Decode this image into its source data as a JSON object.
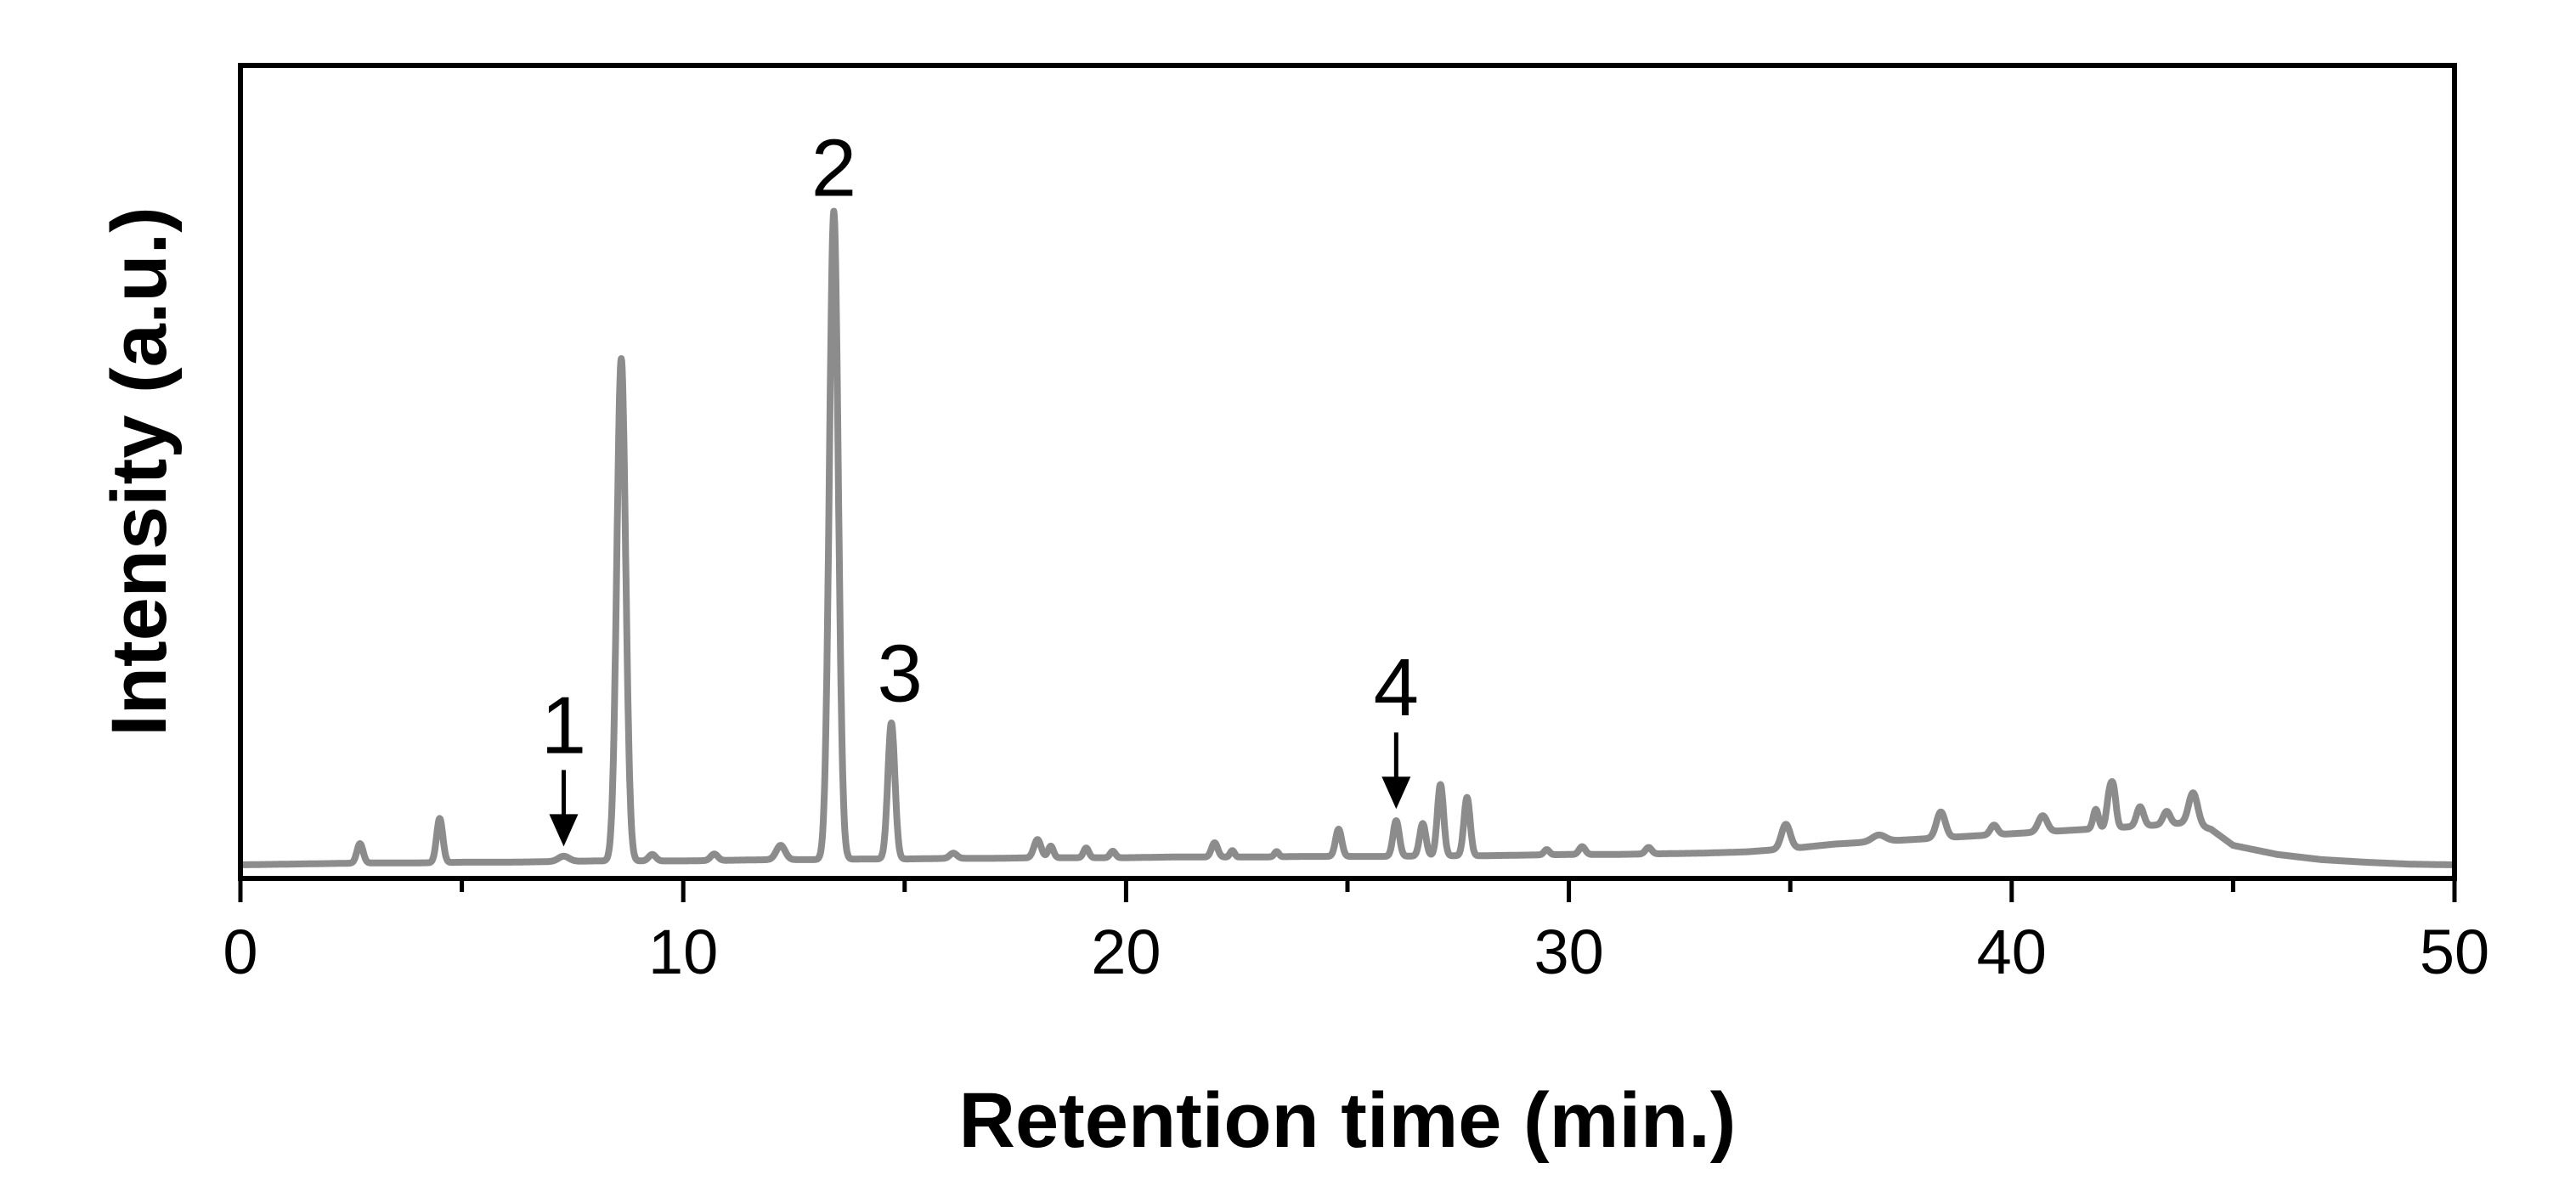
{
  "chart_data": {
    "type": "line",
    "title": "",
    "xlabel": "Retention time (min.)",
    "ylabel": "Intensity (a.u.)",
    "xlim": [
      0,
      50
    ],
    "ylim": [
      0,
      1.0
    ],
    "x_ticks": [
      0,
      10,
      20,
      30,
      40,
      50
    ],
    "x_minor_ticks": [
      5,
      15,
      25,
      35,
      45
    ],
    "y_ticks_shown": false,
    "grid": false,
    "legend": "none",
    "line_color": "#8c8c8c",
    "series": [
      {
        "baseline": [
          [
            0,
            0.0
          ],
          [
            1,
            0.001
          ],
          [
            2,
            0.002
          ],
          [
            3,
            0.003
          ],
          [
            4,
            0.003
          ],
          [
            5,
            0.004
          ],
          [
            6,
            0.004
          ],
          [
            7,
            0.005
          ],
          [
            8,
            0.006
          ],
          [
            9,
            0.006
          ],
          [
            10,
            0.006
          ],
          [
            11,
            0.007
          ],
          [
            12,
            0.008
          ],
          [
            13,
            0.008
          ],
          [
            14,
            0.009
          ],
          [
            15,
            0.009
          ],
          [
            16,
            0.01
          ],
          [
            17,
            0.01
          ],
          [
            18,
            0.011
          ],
          [
            19,
            0.011
          ],
          [
            20,
            0.011
          ],
          [
            21,
            0.012
          ],
          [
            22,
            0.012
          ],
          [
            23,
            0.012
          ],
          [
            24,
            0.013
          ],
          [
            25,
            0.013
          ],
          [
            26,
            0.013
          ],
          [
            27,
            0.014
          ],
          [
            28,
            0.014
          ],
          [
            29,
            0.015
          ],
          [
            30,
            0.016
          ],
          [
            31,
            0.016
          ],
          [
            32,
            0.017
          ],
          [
            33,
            0.018
          ],
          [
            34,
            0.02
          ],
          [
            35,
            0.025
          ],
          [
            36,
            0.032
          ],
          [
            37,
            0.036
          ],
          [
            38,
            0.04
          ],
          [
            39,
            0.044
          ],
          [
            40,
            0.048
          ],
          [
            41,
            0.052
          ],
          [
            42,
            0.056
          ],
          [
            43,
            0.06
          ],
          [
            44,
            0.065
          ],
          [
            44.5,
            0.055
          ],
          [
            45,
            0.03
          ],
          [
            46,
            0.016
          ],
          [
            47,
            0.008
          ],
          [
            48,
            0.004
          ],
          [
            49,
            0.001
          ],
          [
            50,
            0.0
          ]
        ],
        "peaks": [
          {
            "x": 2.7,
            "y": 0.03,
            "w": 0.07
          },
          {
            "x": 4.5,
            "y": 0.068,
            "w": 0.07
          },
          {
            "x": 7.3,
            "y": 0.008,
            "w": 0.12
          },
          {
            "x": 8.6,
            "y": 0.775,
            "w": 0.1
          },
          {
            "x": 9.3,
            "y": 0.01,
            "w": 0.08
          },
          {
            "x": 10.7,
            "y": 0.01,
            "w": 0.08
          },
          {
            "x": 12.2,
            "y": 0.022,
            "w": 0.1
          },
          {
            "x": 13.4,
            "y": 1.0,
            "w": 0.1
          },
          {
            "x": 14.7,
            "y": 0.21,
            "w": 0.08
          },
          {
            "x": 16.1,
            "y": 0.008,
            "w": 0.08
          },
          {
            "x": 18.0,
            "y": 0.028,
            "w": 0.08
          },
          {
            "x": 18.3,
            "y": 0.018,
            "w": 0.06
          },
          {
            "x": 19.1,
            "y": 0.015,
            "w": 0.06
          },
          {
            "x": 19.7,
            "y": 0.01,
            "w": 0.06
          },
          {
            "x": 22.0,
            "y": 0.022,
            "w": 0.07
          },
          {
            "x": 22.4,
            "y": 0.01,
            "w": 0.05
          },
          {
            "x": 23.4,
            "y": 0.008,
            "w": 0.05
          },
          {
            "x": 24.8,
            "y": 0.042,
            "w": 0.07
          },
          {
            "x": 26.1,
            "y": 0.055,
            "w": 0.07
          },
          {
            "x": 26.7,
            "y": 0.05,
            "w": 0.07
          },
          {
            "x": 27.1,
            "y": 0.11,
            "w": 0.07
          },
          {
            "x": 27.7,
            "y": 0.09,
            "w": 0.07
          },
          {
            "x": 29.5,
            "y": 0.008,
            "w": 0.06
          },
          {
            "x": 30.3,
            "y": 0.012,
            "w": 0.07
          },
          {
            "x": 31.8,
            "y": 0.01,
            "w": 0.07
          },
          {
            "x": 34.9,
            "y": 0.038,
            "w": 0.1
          },
          {
            "x": 37.0,
            "y": 0.01,
            "w": 0.15
          },
          {
            "x": 38.4,
            "y": 0.04,
            "w": 0.1
          },
          {
            "x": 39.6,
            "y": 0.015,
            "w": 0.08
          },
          {
            "x": 40.7,
            "y": 0.025,
            "w": 0.1
          },
          {
            "x": 41.9,
            "y": 0.03,
            "w": 0.06
          },
          {
            "x": 42.2,
            "y": 0.045,
            "w": 0.06
          },
          {
            "x": 42.3,
            "y": 0.055,
            "w": 0.06
          },
          {
            "x": 42.9,
            "y": 0.03,
            "w": 0.08
          },
          {
            "x": 43.5,
            "y": 0.02,
            "w": 0.08
          },
          {
            "x": 44.1,
            "y": 0.048,
            "w": 0.1
          }
        ]
      }
    ],
    "annotations": [
      {
        "text": "1",
        "x": 7.3,
        "y": 0.01,
        "arrow": true
      },
      {
        "text": "2",
        "x": 13.4,
        "y": 1.0,
        "arrow": false
      },
      {
        "text": "3",
        "x": 14.7,
        "y": 0.22,
        "arrow": false
      },
      {
        "text": "4",
        "x": 26.1,
        "y": 0.06,
        "arrow": true
      }
    ]
  }
}
